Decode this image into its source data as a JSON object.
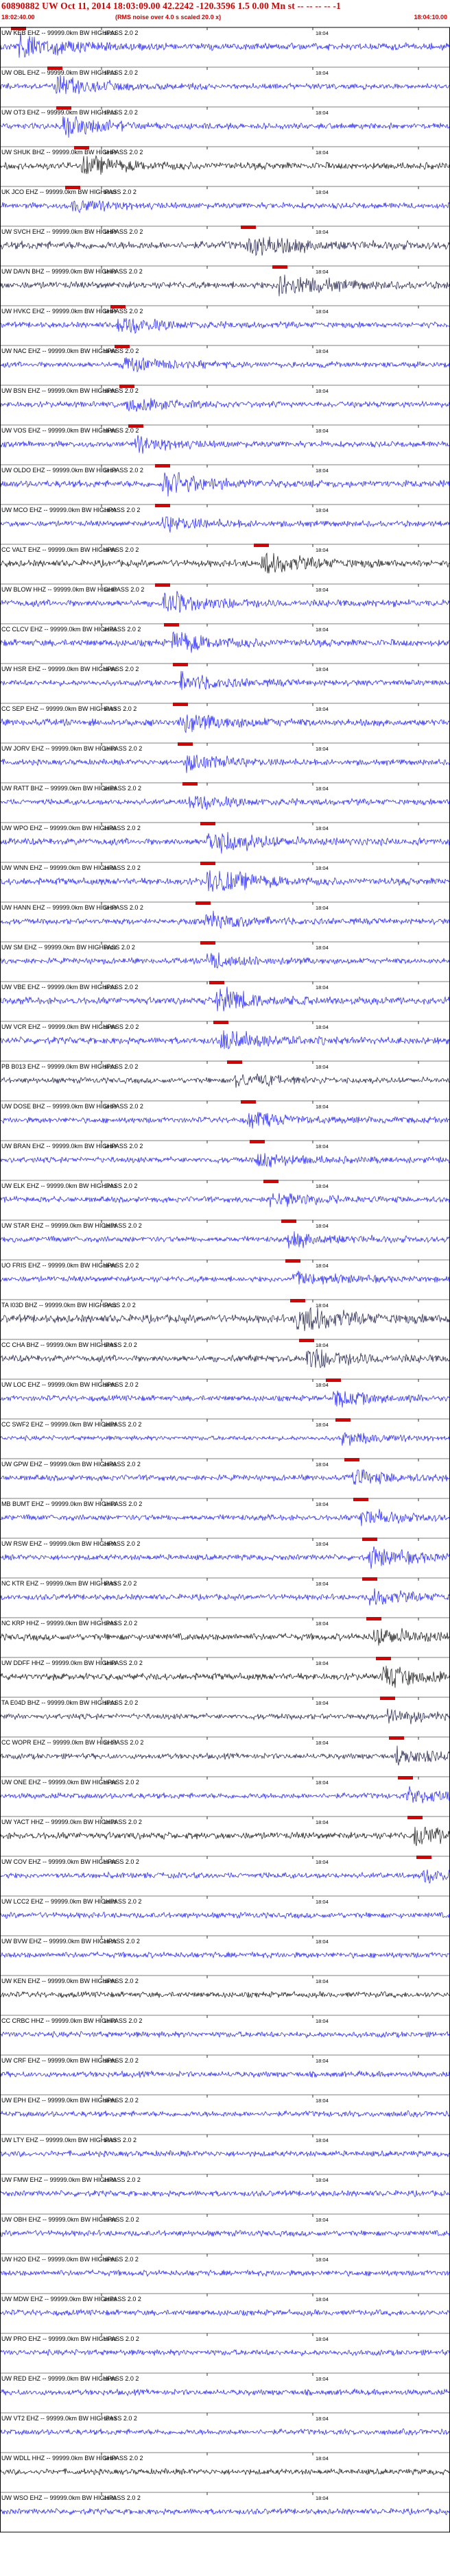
{
  "header": {
    "title": "60890882 UW Oct 11, 2014 18:03:09.00   42.2242 -120.3596   1.5 0.00 Mn st -- -- -- -- -1",
    "start_time": "18:02:40.00",
    "noise_note": "(RMS noise over 4.0 s scaled 20.0 x)",
    "end_time": "18:04:10.00"
  },
  "minute_tick_label": "18:03",
  "minute_tick_label_2": "18:04",
  "filter_suffix": "-- 99999.0km BW HIGHPASS  2.0  2",
  "colors": {
    "trace": "#1a1aff",
    "trace_dark": "#1a1a4a",
    "trace_black": "#111111",
    "pick": "#dd0000",
    "grid": "#000000",
    "title": "#cc0000"
  },
  "channels": [
    {
      "name": "UW KEB EHZ",
      "color": "blue",
      "amp": 6,
      "event": 0.04,
      "burst": 18
    },
    {
      "name": "UW OBL EHZ",
      "color": "blue",
      "amp": 5,
      "event": 0.12,
      "burst": 14
    },
    {
      "name": "UW OT3 EHZ",
      "color": "blue",
      "amp": 5,
      "event": 0.14,
      "burst": 14
    },
    {
      "name": "UW SHUK BHZ",
      "color": "black",
      "amp": 6,
      "event": 0.18,
      "burst": 12
    },
    {
      "name": "UK JCO EHZ",
      "color": "blue",
      "amp": 5,
      "event": 0.16,
      "burst": 8
    },
    {
      "name": "UW SVCH EHZ",
      "color": "dark",
      "amp": 7,
      "event": 0.55,
      "burst": 16
    },
    {
      "name": "UW DAVN BHZ",
      "color": "dark",
      "amp": 6,
      "event": 0.62,
      "burst": 16
    },
    {
      "name": "UW HVKC EHZ",
      "color": "blue",
      "amp": 5,
      "event": 0.26,
      "burst": 12
    },
    {
      "name": "UW NAC EHZ",
      "color": "blue",
      "amp": 5,
      "event": 0.27,
      "burst": 10
    },
    {
      "name": "UW BSN EHZ",
      "color": "blue",
      "amp": 5,
      "event": 0.28,
      "burst": 10
    },
    {
      "name": "UW VOS EHZ",
      "color": "blue",
      "amp": 5,
      "event": 0.3,
      "burst": 10
    },
    {
      "name": "UW OLDO EHZ",
      "color": "blue",
      "amp": 6,
      "event": 0.36,
      "burst": 18
    },
    {
      "name": "UW MCO EHZ",
      "color": "blue",
      "amp": 5,
      "event": 0.36,
      "burst": 10
    },
    {
      "name": "CC VALT EHZ",
      "color": "black",
      "amp": 6,
      "event": 0.58,
      "burst": 14
    },
    {
      "name": "UW BLOW HHZ",
      "color": "blue",
      "amp": 6,
      "event": 0.36,
      "burst": 16
    },
    {
      "name": "CC CLCV EHZ",
      "color": "blue",
      "amp": 6,
      "event": 0.38,
      "burst": 14
    },
    {
      "name": "UW HSR EHZ",
      "color": "blue",
      "amp": 5,
      "event": 0.4,
      "burst": 12
    },
    {
      "name": "CC SEP EHZ",
      "color": "blue",
      "amp": 6,
      "event": 0.4,
      "burst": 14
    },
    {
      "name": "UW JORV EHZ",
      "color": "blue",
      "amp": 5,
      "event": 0.41,
      "burst": 12
    },
    {
      "name": "UW RATT BHZ",
      "color": "blue",
      "amp": 5,
      "event": 0.42,
      "burst": 10
    },
    {
      "name": "UW WPO EHZ",
      "color": "blue",
      "amp": 6,
      "event": 0.46,
      "burst": 18
    },
    {
      "name": "UW WNN EHZ",
      "color": "blue",
      "amp": 6,
      "event": 0.46,
      "burst": 18
    },
    {
      "name": "UW HANN EHZ",
      "color": "blue",
      "amp": 5,
      "event": 0.45,
      "burst": 12
    },
    {
      "name": "UW SM EHZ",
      "color": "blue",
      "amp": 5,
      "event": 0.46,
      "burst": 10
    },
    {
      "name": "UW VBE EHZ",
      "color": "blue",
      "amp": 6,
      "event": 0.48,
      "burst": 16
    },
    {
      "name": "UW VCR EHZ",
      "color": "blue",
      "amp": 6,
      "event": 0.49,
      "burst": 14
    },
    {
      "name": "PB B013 EHZ",
      "color": "dark",
      "amp": 5,
      "event": 0.52,
      "burst": 10
    },
    {
      "name": "UW DOSE BHZ",
      "color": "blue",
      "amp": 5,
      "event": 0.55,
      "burst": 10
    },
    {
      "name": "UW BRAN EHZ",
      "color": "blue",
      "amp": 5,
      "event": 0.57,
      "burst": 10
    },
    {
      "name": "UW ELK EHZ",
      "color": "blue",
      "amp": 5,
      "event": 0.6,
      "burst": 10
    },
    {
      "name": "UW STAR EHZ",
      "color": "blue",
      "amp": 5,
      "event": 0.64,
      "burst": 10
    },
    {
      "name": "UO FRIS EHZ",
      "color": "blue",
      "amp": 5,
      "event": 0.65,
      "burst": 10
    },
    {
      "name": "TA I03D BHZ",
      "color": "dark",
      "amp": 7,
      "event": 0.66,
      "burst": 18
    },
    {
      "name": "CC CHA BHZ",
      "color": "dark",
      "amp": 6,
      "event": 0.68,
      "burst": 16
    },
    {
      "name": "UW LOC EHZ",
      "color": "blue",
      "amp": 5,
      "event": 0.74,
      "burst": 10
    },
    {
      "name": "CC SWF2 EHZ",
      "color": "blue",
      "amp": 4,
      "event": 0.76,
      "burst": 8
    },
    {
      "name": "UW GPW EHZ",
      "color": "blue",
      "amp": 5,
      "event": 0.78,
      "burst": 10
    },
    {
      "name": "MB BUMT EHZ",
      "color": "blue",
      "amp": 5,
      "event": 0.8,
      "burst": 10
    },
    {
      "name": "UW RSW EHZ",
      "color": "blue",
      "amp": 5,
      "event": 0.82,
      "burst": 14
    },
    {
      "name": "NC KTR EHZ",
      "color": "blue",
      "amp": 5,
      "event": 0.82,
      "burst": 10
    },
    {
      "name": "NC KRP HHZ",
      "color": "black",
      "amp": 6,
      "event": 0.83,
      "burst": 12
    },
    {
      "name": "UW DDFF HHZ",
      "color": "black",
      "amp": 6,
      "event": 0.85,
      "burst": 14
    },
    {
      "name": "TA E04D BHZ",
      "color": "dark",
      "amp": 5,
      "event": 0.86,
      "burst": 10
    },
    {
      "name": "CC WOPR EHZ",
      "color": "dark",
      "amp": 5,
      "event": 0.88,
      "burst": 10
    },
    {
      "name": "UW ONE EHZ",
      "color": "blue",
      "amp": 5,
      "event": 0.9,
      "burst": 10
    },
    {
      "name": "UW YACT HHZ",
      "color": "black",
      "amp": 6,
      "event": 0.92,
      "burst": 12
    },
    {
      "name": "UW COV EHZ",
      "color": "blue",
      "amp": 5,
      "event": 0.94,
      "burst": 8
    },
    {
      "name": "UW LCC2 EHZ",
      "color": "blue",
      "amp": 5,
      "event": -1,
      "burst": 0
    },
    {
      "name": "UW BVW EHZ",
      "color": "blue",
      "amp": 5,
      "event": -1,
      "burst": 0
    },
    {
      "name": "UW KEN EHZ",
      "color": "black",
      "amp": 5,
      "event": -1,
      "burst": 0
    },
    {
      "name": "CC CRBC HHZ",
      "color": "blue",
      "amp": 5,
      "event": -1,
      "burst": 0
    },
    {
      "name": "UW CRF EHZ",
      "color": "blue",
      "amp": 5,
      "event": -1,
      "burst": 0
    },
    {
      "name": "UW EPH EHZ",
      "color": "blue",
      "amp": 5,
      "event": -1,
      "burst": 0
    },
    {
      "name": "UW LTY EHZ",
      "color": "blue",
      "amp": 5,
      "event": -1,
      "burst": 0
    },
    {
      "name": "UW FMW EHZ",
      "color": "blue",
      "amp": 5,
      "event": -1,
      "burst": 0
    },
    {
      "name": "UW OBH EHZ",
      "color": "blue",
      "amp": 5,
      "event": -1,
      "burst": 0
    },
    {
      "name": "UW H2O EHZ",
      "color": "blue",
      "amp": 5,
      "event": -1,
      "burst": 0
    },
    {
      "name": "UW MDW EHZ",
      "color": "blue",
      "amp": 5,
      "event": -1,
      "burst": 0
    },
    {
      "name": "UW PRO EHZ",
      "color": "blue",
      "amp": 5,
      "event": -1,
      "burst": 0
    },
    {
      "name": "UW RED EHZ",
      "color": "blue",
      "amp": 5,
      "event": -1,
      "burst": 0
    },
    {
      "name": "UW VT2 EHZ",
      "color": "blue",
      "amp": 5,
      "event": -1,
      "burst": 0
    },
    {
      "name": "UW WDLL HHZ",
      "color": "black",
      "amp": 5,
      "event": -1,
      "burst": 0
    },
    {
      "name": "UW WSO EHZ",
      "color": "blue",
      "amp": 5,
      "event": -1,
      "burst": 0
    }
  ]
}
